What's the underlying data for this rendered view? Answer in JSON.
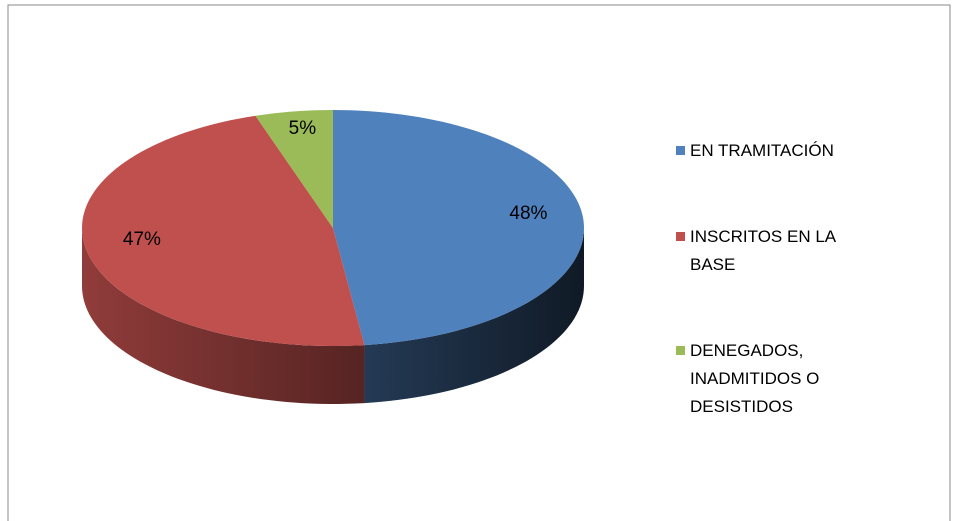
{
  "chart_data": {
    "type": "pie3d",
    "categories": [
      "EN TRAMITACIÓN",
      "INSCRITOS EN LA BASE",
      "DENEGADOS, INADMITIDOS O DESISTIDOS"
    ],
    "values": [
      48,
      47,
      5
    ],
    "value_labels": [
      "48%",
      "47%",
      "5%"
    ],
    "colors": [
      "#4f81bd",
      "#c0504d",
      "#9bbb59"
    ],
    "legend": "right"
  }
}
